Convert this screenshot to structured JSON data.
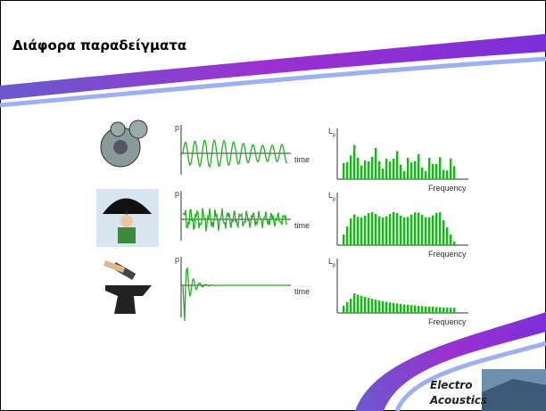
{
  "header": {
    "title": "Διάφορα παραδείγματα"
  },
  "examples": [
    {
      "time_axis": {
        "y_label": "p",
        "x_label": "time"
      },
      "spectrum_axis": {
        "y_label": "L",
        "y_label_subscript": "p",
        "x_label": "Frequency"
      }
    },
    {
      "time_axis": {
        "y_label": "p",
        "x_label": "time"
      },
      "spectrum_axis": {
        "y_label": "L",
        "y_label_subscript": "p",
        "x_label": "Frequency"
      }
    },
    {
      "time_axis": {
        "y_label": "p",
        "x_label": "time"
      },
      "spectrum_axis": {
        "y_label": "L",
        "y_label_subscript": "p",
        "x_label": "Frequency"
      }
    }
  ],
  "logo": {
    "line1": "Electro",
    "line2": "Acoustics"
  }
}
